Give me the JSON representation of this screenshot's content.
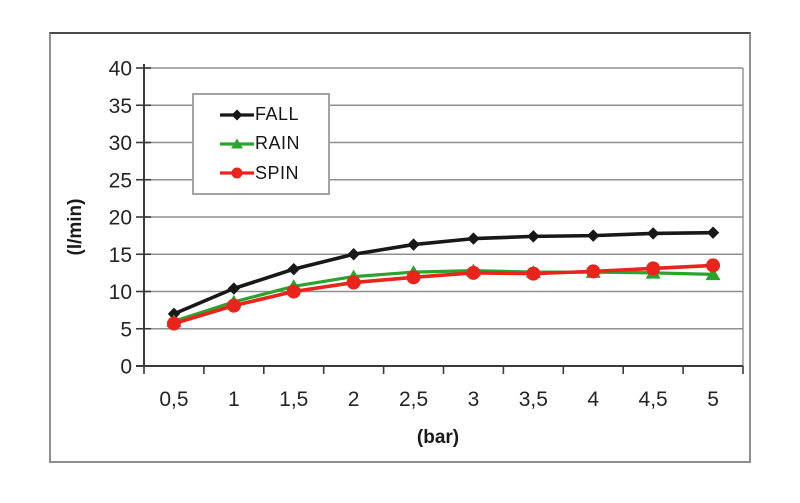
{
  "chart_data": {
    "type": "line",
    "xlabel": "(bar)",
    "ylabel": "(l/min)",
    "categories": [
      "0,5",
      "1",
      "1,5",
      "2",
      "2,5",
      "3",
      "3,5",
      "4",
      "4,5",
      "5"
    ],
    "yticks": [
      0,
      5,
      10,
      15,
      20,
      25,
      30,
      35,
      40
    ],
    "ylim": [
      0,
      40
    ],
    "grid": true,
    "legend_position": "upper-left-inside",
    "series": [
      {
        "name": "FALL",
        "color": "#181818",
        "marker": "diamond",
        "values": [
          7.0,
          10.4,
          13.0,
          15.0,
          16.3,
          17.1,
          17.4,
          17.5,
          17.8,
          17.9
        ]
      },
      {
        "name": "RAIN",
        "color": "#2ca32c",
        "marker": "triangle",
        "values": [
          6.0,
          8.6,
          10.7,
          12.0,
          12.6,
          12.8,
          12.6,
          12.6,
          12.5,
          12.3
        ]
      },
      {
        "name": "SPIN",
        "color": "#e8241c",
        "marker": "circle",
        "values": [
          5.7,
          8.1,
          10.0,
          11.2,
          11.9,
          12.5,
          12.4,
          12.7,
          13.1,
          13.5
        ]
      }
    ]
  },
  "colors": {
    "gridline": "#8f8f8f",
    "axis": "#3a3a3a",
    "text": "#242424",
    "frame_border": "#8f8f8f",
    "legend_border": "#a3a3a3",
    "background": "#ffffff"
  }
}
